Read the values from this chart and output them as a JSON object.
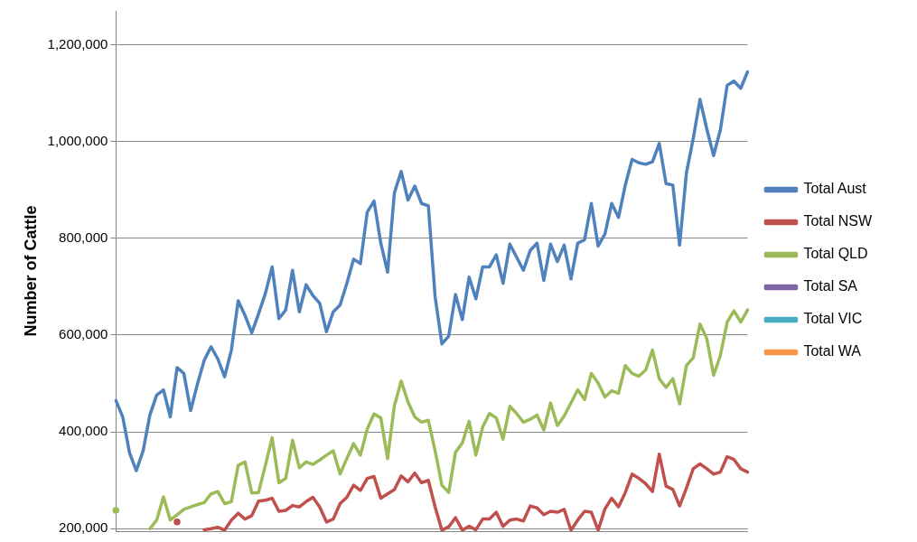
{
  "chart_data": {
    "type": "line",
    "ylabel": "Number of Cattle",
    "categories": [
      null,
      null,
      null,
      null,
      null,
      null,
      null,
      null,
      null,
      null,
      null,
      null,
      null,
      null,
      null,
      null,
      null,
      null,
      null,
      null,
      null,
      null,
      null,
      null,
      null,
      null,
      null,
      null,
      null,
      null,
      null,
      null,
      null,
      null,
      null,
      null,
      null,
      null,
      null,
      null,
      null,
      null,
      null,
      null,
      null,
      null,
      null,
      null,
      null,
      null,
      null,
      null,
      null,
      null,
      null,
      null,
      null,
      null,
      null,
      null,
      null,
      null,
      null,
      null,
      null,
      null,
      null,
      null,
      null,
      null,
      null,
      null,
      null,
      null,
      null,
      null,
      null,
      null,
      null,
      null,
      null,
      null,
      null,
      null,
      null,
      null,
      null,
      null,
      null,
      null,
      null,
      null,
      null,
      null
    ],
    "ylim": [
      195000,
      1270000
    ],
    "yticks": [
      {
        "value": 200000,
        "label": "200,000"
      },
      {
        "value": 400000,
        "label": "400,000"
      },
      {
        "value": 600000,
        "label": "600,000"
      },
      {
        "value": 800000,
        "label": "800,000"
      },
      {
        "value": 1000000,
        "label": "1,000,000"
      },
      {
        "value": 1200000,
        "label": "1,200,000"
      }
    ],
    "grid": "y",
    "legend": "right",
    "tick_labels": "y",
    "marker": "none",
    "line_style": "solid",
    "series": [
      {
        "name": "Total Aust",
        "color": "#4f81bd",
        "values": [
          465000,
          431000,
          357000,
          320000,
          361000,
          435000,
          476000,
          487000,
          431000,
          533000,
          521000,
          444000,
          499000,
          548000,
          576000,
          551000,
          514000,
          569000,
          671000,
          641000,
          605000,
          644000,
          686000,
          741000,
          634000,
          652000,
          734000,
          648000,
          704000,
          682000,
          666000,
          607000,
          648000,
          662000,
          707000,
          757000,
          748000,
          854000,
          877000,
          790000,
          730000,
          894000,
          938000,
          879000,
          908000,
          872000,
          867000,
          679000,
          582000,
          598000,
          684000,
          632000,
          720000,
          675000,
          741000,
          741000,
          766000,
          707000,
          788000,
          761000,
          734000,
          775000,
          790000,
          713000,
          788000,
          752000,
          786000,
          716000,
          790000,
          797000,
          872000,
          784000,
          809000,
          872000,
          843000,
          910000,
          963000,
          956000,
          953000,
          958000,
          996000,
          913000,
          910000,
          786000,
          935000,
          1006000,
          1087000,
          1026000,
          971000,
          1024000,
          1116000,
          1125000,
          1110000,
          1144000
        ]
      },
      {
        "name": "Total NSW",
        "color": "#c0504d",
        "values": [
          null,
          null,
          null,
          null,
          null,
          null,
          null,
          null,
          null,
          214000,
          null,
          null,
          null,
          198000,
          200000,
          203000,
          197000,
          218000,
          232000,
          220000,
          227000,
          257000,
          259000,
          263000,
          236000,
          238000,
          248000,
          245000,
          256000,
          265000,
          245000,
          214000,
          220000,
          252000,
          265000,
          290000,
          279000,
          304000,
          308000,
          263000,
          272000,
          281000,
          309000,
          297000,
          315000,
          295000,
          300000,
          245000,
          197000,
          204000,
          223000,
          197000,
          205000,
          198000,
          220000,
          220000,
          234000,
          205000,
          218000,
          220000,
          216000,
          247000,
          243000,
          229000,
          236000,
          234000,
          240000,
          197000,
          218000,
          236000,
          234000,
          197000,
          241000,
          263000,
          245000,
          275000,
          313000,
          304000,
          293000,
          277000,
          354000,
          288000,
          281000,
          247000,
          284000,
          324000,
          334000,
          324000,
          313000,
          317000,
          349000,
          343000,
          324000,
          317000
        ]
      },
      {
        "name": "Total QLD",
        "color": "#9bbb59",
        "values": [
          238000,
          null,
          null,
          null,
          null,
          200000,
          218000,
          266000,
          218000,
          229000,
          240000,
          245000,
          250000,
          254000,
          272000,
          277000,
          252000,
          256000,
          331000,
          338000,
          274000,
          275000,
          331000,
          388000,
          295000,
          304000,
          383000,
          326000,
          338000,
          333000,
          342000,
          352000,
          361000,
          313000,
          345000,
          376000,
          352000,
          406000,
          437000,
          429000,
          345000,
          454000,
          505000,
          462000,
          431000,
          420000,
          424000,
          361000,
          290000,
          275000,
          358000,
          377000,
          422000,
          352000,
          410000,
          438000,
          429000,
          385000,
          453000,
          438000,
          420000,
          426000,
          435000,
          404000,
          460000,
          413000,
          433000,
          460000,
          487000,
          467000,
          521000,
          501000,
          472000,
          485000,
          480000,
          537000,
          521000,
          515000,
          528000,
          569000,
          510000,
          492000,
          510000,
          458000,
          537000,
          553000,
          623000,
          593000,
          517000,
          558000,
          627000,
          650000,
          627000,
          652000
        ]
      },
      {
        "name": "Total SA",
        "color": "#8064a2",
        "values": [
          null,
          null,
          null,
          null,
          null,
          null,
          null,
          null,
          null,
          null,
          null,
          null,
          null,
          null,
          null,
          null,
          null,
          null,
          null,
          null,
          null,
          null,
          null,
          null,
          null,
          null,
          null,
          null,
          null,
          null,
          null,
          null,
          null,
          null,
          null,
          null,
          null,
          null,
          null,
          null,
          null,
          null,
          null,
          null,
          null,
          null,
          null,
          null,
          null,
          null,
          null,
          null,
          null,
          null,
          null,
          null,
          null,
          null,
          null,
          null,
          null,
          null,
          null,
          null,
          null,
          null,
          null,
          null,
          null,
          null,
          null,
          null,
          null,
          null,
          null,
          null,
          null,
          null,
          null,
          null,
          null,
          null,
          null,
          null,
          null,
          null,
          null,
          null,
          null,
          null,
          null,
          null,
          null,
          null
        ]
      },
      {
        "name": "Total VIC",
        "color": "#4bacc6",
        "values": [
          null,
          null,
          null,
          null,
          null,
          null,
          null,
          null,
          null,
          null,
          null,
          null,
          null,
          null,
          null,
          null,
          null,
          null,
          null,
          null,
          null,
          null,
          null,
          null,
          null,
          null,
          null,
          null,
          null,
          null,
          null,
          null,
          null,
          null,
          null,
          null,
          null,
          null,
          null,
          null,
          null,
          null,
          null,
          null,
          null,
          null,
          null,
          null,
          null,
          null,
          null,
          null,
          null,
          null,
          null,
          null,
          null,
          null,
          null,
          null,
          null,
          null,
          null,
          null,
          null,
          null,
          null,
          null,
          null,
          null,
          null,
          null,
          null,
          null,
          null,
          null,
          null,
          null,
          null,
          null,
          null,
          null,
          null,
          null,
          null,
          null,
          null,
          null,
          null,
          null,
          null,
          null,
          null,
          null
        ]
      },
      {
        "name": "Total WA",
        "color": "#f79646",
        "values": [
          null,
          null,
          null,
          null,
          null,
          null,
          null,
          null,
          null,
          null,
          null,
          null,
          null,
          null,
          null,
          null,
          null,
          null,
          null,
          null,
          null,
          null,
          null,
          null,
          null,
          null,
          null,
          null,
          null,
          null,
          null,
          null,
          null,
          null,
          null,
          null,
          null,
          null,
          null,
          null,
          null,
          null,
          null,
          null,
          null,
          null,
          null,
          null,
          null,
          null,
          null,
          null,
          null,
          null,
          null,
          null,
          null,
          null,
          null,
          null,
          null,
          null,
          null,
          null,
          null,
          null,
          null,
          null,
          null,
          null,
          null,
          null,
          null,
          null,
          null,
          null,
          null,
          null,
          null,
          null,
          null,
          null,
          null,
          null,
          null,
          null,
          null,
          null,
          null,
          null,
          null,
          null,
          null,
          null
        ]
      }
    ]
  }
}
